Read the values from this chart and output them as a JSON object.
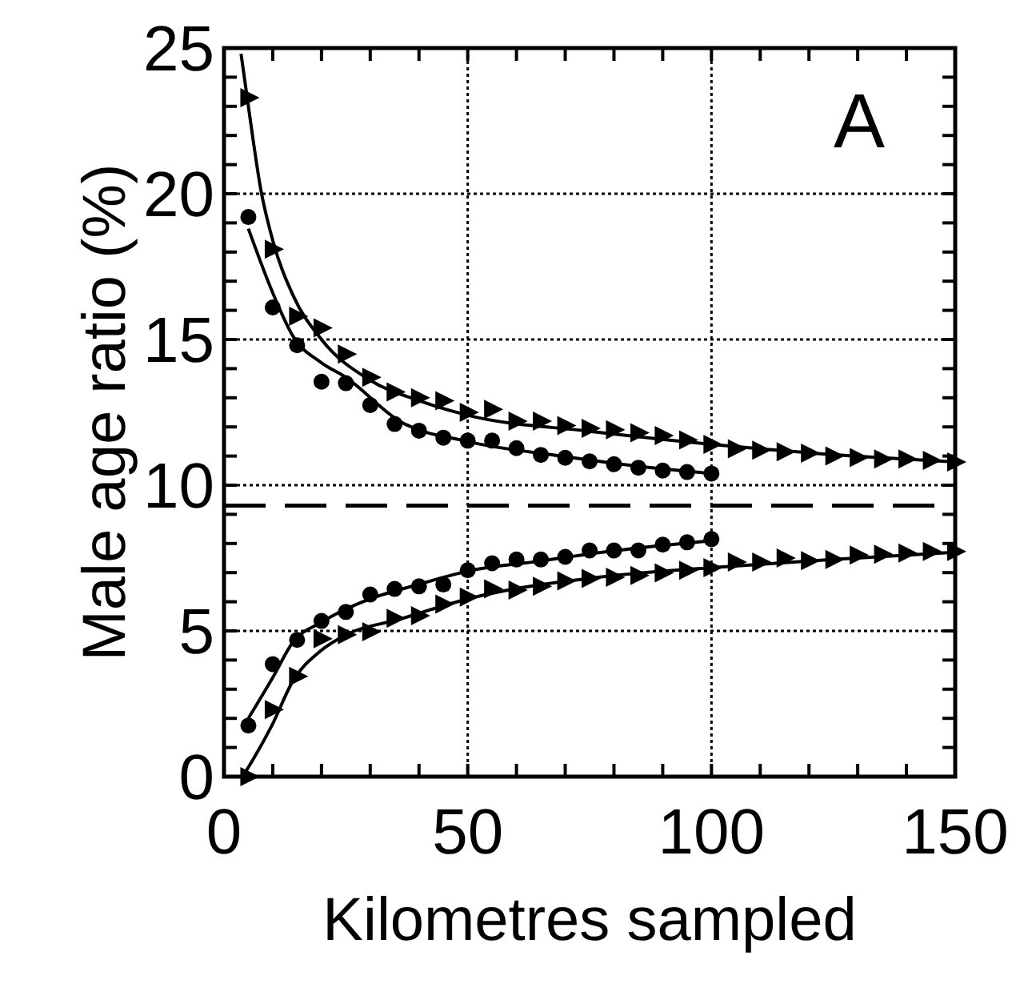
{
  "chart_data": {
    "type": "scatter",
    "xlabel": "Kilometres sampled",
    "ylabel": "Male age ratio (%)",
    "annotations": [
      "A"
    ],
    "xlim": [
      0,
      150
    ],
    "ylim": [
      0,
      25
    ],
    "xticks": [
      0,
      {
        "value": 10,
        "label": null
      },
      {
        "value": 20,
        "label": null
      },
      {
        "value": 30,
        "label": null
      },
      {
        "value": 40,
        "label": null
      },
      50,
      {
        "value": 60,
        "label": null
      },
      {
        "value": 70,
        "label": null
      },
      {
        "value": 80,
        "label": null
      },
      {
        "value": 90,
        "label": null
      },
      100,
      {
        "value": 110,
        "label": null
      },
      {
        "value": 120,
        "label": null
      },
      {
        "value": 130,
        "label": null
      },
      {
        "value": 140,
        "label": null
      },
      150
    ],
    "yticks": [
      0,
      {
        "value": 1,
        "label": null
      },
      {
        "value": 2,
        "label": null
      },
      {
        "value": 3,
        "label": null
      },
      {
        "value": 4,
        "label": null
      },
      5,
      {
        "value": 6,
        "label": null
      },
      {
        "value": 7,
        "label": null
      },
      {
        "value": 8,
        "label": null
      },
      {
        "value": 9,
        "label": null
      },
      10,
      {
        "value": 11,
        "label": null
      },
      {
        "value": 12,
        "label": null
      },
      {
        "value": 13,
        "label": null
      },
      {
        "value": 14,
        "label": null
      },
      15,
      {
        "value": 16,
        "label": null
      },
      {
        "value": 17,
        "label": null
      },
      {
        "value": 18,
        "label": null
      },
      {
        "value": 19,
        "label": null
      },
      20,
      {
        "value": 21,
        "label": null
      },
      {
        "value": 22,
        "label": null
      },
      {
        "value": 23,
        "label": null
      },
      {
        "value": 24,
        "label": null
      },
      25
    ],
    "grid": true,
    "ref_lines": [
      {
        "axis": "y",
        "value": 9.3,
        "line_style": "dashed",
        "color": "#000000"
      }
    ],
    "series": [
      {
        "marker": "triangle",
        "color": "#000000",
        "x": [
          5,
          10,
          15,
          20,
          25,
          30,
          35,
          40,
          45,
          50,
          55,
          60,
          65,
          70,
          75,
          80,
          85,
          90,
          95,
          100,
          105,
          110,
          115,
          120,
          125,
          130,
          135,
          140,
          145,
          150
        ],
        "values": [
          23.3,
          18.1,
          15.8,
          15.4,
          14.5,
          13.7,
          13.2,
          13.0,
          12.9,
          12.5,
          12.6,
          12.2,
          12.2,
          12.05,
          11.95,
          11.9,
          11.8,
          11.7,
          11.55,
          11.4,
          11.25,
          11.2,
          11.15,
          11.1,
          11.0,
          10.95,
          10.9,
          10.9,
          10.85,
          10.8
        ]
      },
      {
        "marker": "circle",
        "color": "#000000",
        "x": [
          5,
          10,
          15,
          20,
          25,
          30,
          35,
          40,
          45,
          50,
          55,
          60,
          65,
          70,
          75,
          80,
          85,
          90,
          95,
          100
        ],
        "values": [
          19.2,
          16.1,
          14.8,
          13.55,
          13.5,
          12.75,
          12.1,
          11.87,
          11.63,
          11.53,
          11.53,
          11.27,
          11.04,
          10.94,
          10.82,
          10.72,
          10.6,
          10.5,
          10.45,
          10.4
        ]
      },
      {
        "marker": "circle",
        "color": "#000000",
        "x": [
          5,
          10,
          15,
          20,
          25,
          30,
          35,
          40,
          45,
          50,
          55,
          60,
          65,
          70,
          75,
          80,
          85,
          90,
          95,
          100
        ],
        "values": [
          1.75,
          3.86,
          4.69,
          5.34,
          5.65,
          6.25,
          6.44,
          6.53,
          6.59,
          7.08,
          7.32,
          7.45,
          7.45,
          7.54,
          7.76,
          7.76,
          7.76,
          7.96,
          8.04,
          8.15
        ]
      },
      {
        "marker": "triangle",
        "color": "#000000",
        "x": [
          5,
          10,
          15,
          20,
          25,
          30,
          35,
          40,
          45,
          50,
          55,
          60,
          65,
          70,
          75,
          80,
          85,
          90,
          95,
          100,
          105,
          110,
          115,
          120,
          125,
          130,
          135,
          140,
          145,
          150
        ],
        "values": [
          0,
          2.3,
          3.44,
          4.73,
          4.87,
          4.97,
          5.43,
          5.52,
          5.92,
          6.16,
          6.44,
          6.4,
          6.53,
          6.72,
          6.8,
          6.84,
          6.9,
          6.99,
          7.08,
          7.17,
          7.36,
          7.36,
          7.5,
          7.41,
          7.45,
          7.6,
          7.63,
          7.67,
          7.73,
          7.73
        ]
      },
      {
        "type": "line",
        "marker": "none",
        "line_style": "solid",
        "color": "#000000",
        "x": [
          3.5,
          5,
          7.6,
          10,
          14.2,
          20,
          30,
          40,
          50,
          75,
          100,
          125,
          150
        ],
        "values": [
          24.8,
          23.0,
          20.1,
          18.4,
          16.5,
          15.0,
          13.6,
          12.9,
          12.4,
          11.85,
          11.4,
          11.05,
          10.8
        ]
      },
      {
        "type": "line",
        "marker": "none",
        "line_style": "solid",
        "color": "#000000",
        "x": [
          5,
          10,
          14.2,
          20,
          25,
          36,
          50,
          69,
          85,
          100
        ],
        "values": [
          18.8,
          16.6,
          15.1,
          14.2,
          13.7,
          12.2,
          11.5,
          11.0,
          10.65,
          10.4
        ]
      },
      {
        "type": "line",
        "marker": "none",
        "line_style": "solid",
        "color": "#000000",
        "x": [
          5,
          10,
          14.1,
          20,
          30,
          40,
          50,
          65,
          80,
          100
        ],
        "values": [
          2.0,
          3.4,
          4.6,
          5.3,
          6.1,
          6.6,
          7.05,
          7.4,
          7.75,
          8.1
        ]
      },
      {
        "type": "line",
        "marker": "none",
        "line_style": "solid",
        "color": "#000000",
        "x": [
          3.8,
          6,
          9.8,
          14.2,
          19.7,
          25.1,
          36,
          50,
          80,
          100,
          125,
          150
        ],
        "values": [
          0,
          0.6,
          1.75,
          3.3,
          4.3,
          4.87,
          5.4,
          6.1,
          6.9,
          7.17,
          7.45,
          7.7
        ]
      }
    ]
  }
}
